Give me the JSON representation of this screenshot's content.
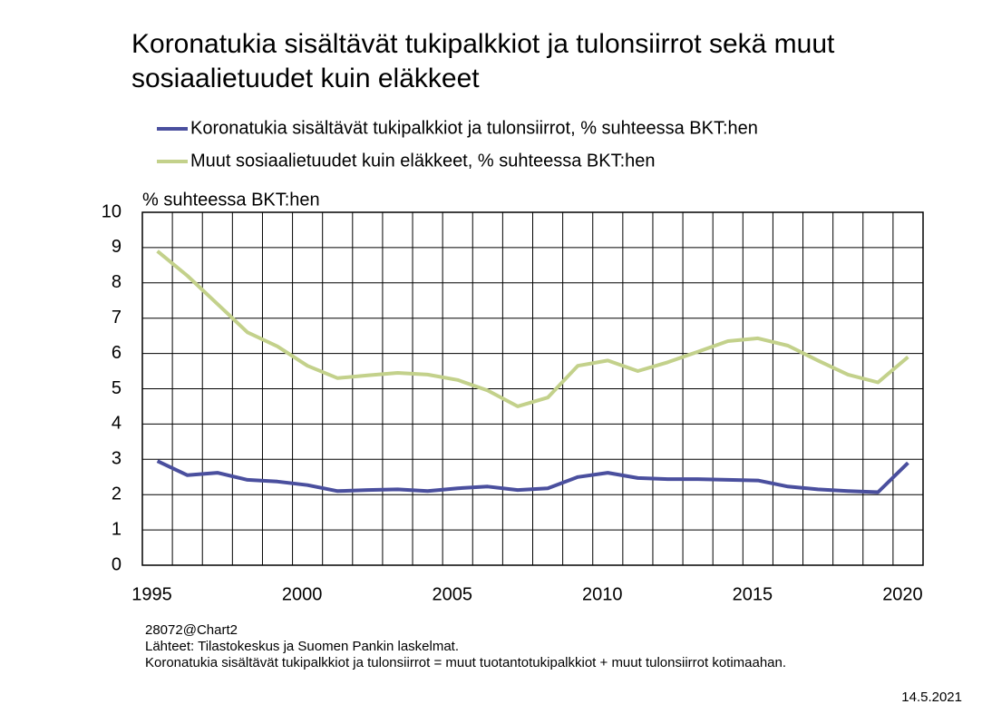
{
  "chart_data": {
    "type": "line",
    "title": "Koronatukia sisältävät tukipalkkiot ja tulonsiirrot sekä muut sosiaalietuudet kuin eläkkeet",
    "ylabel": "% suhteessa BKT:hen",
    "categories": [
      "1995",
      null,
      null,
      null,
      null,
      "2000",
      null,
      null,
      null,
      null,
      "2005",
      null,
      null,
      null,
      null,
      "2010",
      null,
      null,
      null,
      null,
      "2015",
      null,
      null,
      null,
      null,
      "2020"
    ],
    "series": [
      {
        "name": "Koronatukia sisältävät tukipalkkiot ja tulonsiirrot, % suhteessa BKT:hen",
        "color": "#4a4f9e",
        "values": [
          2.95,
          2.55,
          2.62,
          2.42,
          2.37,
          2.27,
          2.1,
          2.13,
          2.15,
          2.1,
          2.18,
          2.23,
          2.13,
          2.18,
          2.5,
          2.62,
          2.47,
          2.44,
          2.44,
          2.42,
          2.4,
          2.23,
          2.15,
          2.1,
          2.07,
          2.9
        ]
      },
      {
        "name": "Muut sosiaalietuudet kuin eläkkeet, % suhteessa BKT:hen",
        "color": "#c3d18b",
        "values": [
          8.9,
          8.2,
          7.4,
          6.6,
          6.2,
          5.65,
          5.3,
          5.38,
          5.45,
          5.4,
          5.25,
          4.95,
          4.5,
          4.75,
          5.65,
          5.8,
          5.5,
          5.75,
          6.05,
          6.35,
          6.43,
          6.22,
          5.8,
          5.4,
          5.18,
          5.9
        ]
      }
    ],
    "ylim": [
      0,
      10
    ],
    "yticks": [
      0,
      1,
      2,
      3,
      4,
      5,
      6,
      7,
      8,
      9,
      10
    ],
    "grid": true,
    "notes": [
      "28072@Chart2",
      "Lähteet: Tilastokeskus ja Suomen Pankin laskelmat.",
      "Koronatukia sisältävät tukipalkkiot ja tulonsiirrot = muut tuotantotukipalkkiot  + muut tulonsiirrot kotimaahan."
    ],
    "date": "14.5.2021"
  }
}
